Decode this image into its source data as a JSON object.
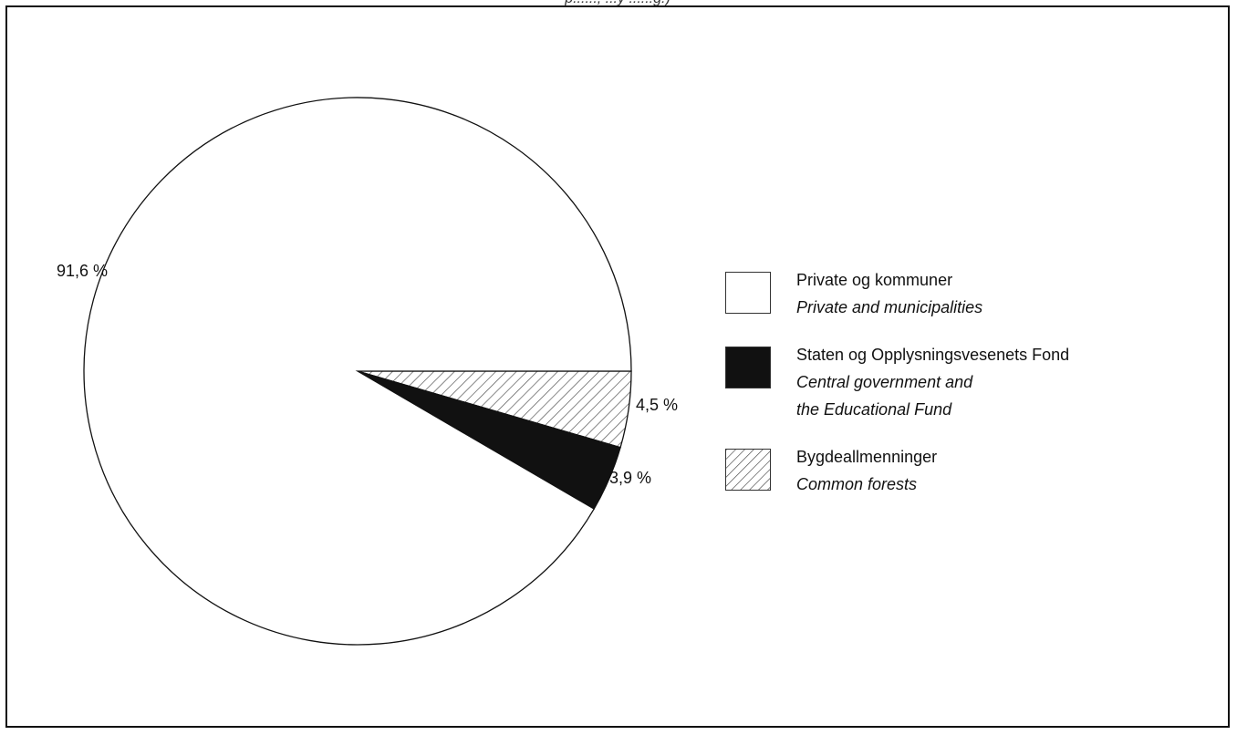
{
  "page": {
    "top_title_fragment": "p......, ...y ......g.)"
  },
  "colors": {
    "ink": "#111111",
    "slice_private": "#ffffff",
    "slice_state": "#111111",
    "slice_common_hatch": "#555555"
  },
  "chart_data": {
    "type": "pie",
    "title": "",
    "slices": [
      {
        "label": "Private og kommuner",
        "label_en": "Private and municipalities",
        "value": 91.6,
        "display": "91,6 %",
        "pattern": "white"
      },
      {
        "label": "Staten og Opplysningsvesenets Fond",
        "label_en": "Central government and the Educational Fund",
        "value": 3.9,
        "display": "3,9 %",
        "pattern": "black"
      },
      {
        "label": "Bygdeallmenninger",
        "label_en": "Common forests",
        "value": 4.5,
        "display": "4,5 %",
        "pattern": "hatch"
      }
    ],
    "legend_placement": "right"
  },
  "legend": {
    "items": [
      {
        "lines": [
          "Private og kommuner"
        ],
        "lines_en": [
          "Private and municipalities"
        ],
        "swatch": "white"
      },
      {
        "lines": [
          "Staten og Opplysningsvesenets Fond"
        ],
        "lines_en": [
          "Central government and",
          "the Educational Fund"
        ],
        "swatch": "black"
      },
      {
        "lines": [
          "Bygdeallmenninger"
        ],
        "lines_en": [
          "Common forests"
        ],
        "swatch": "hatch"
      }
    ]
  }
}
